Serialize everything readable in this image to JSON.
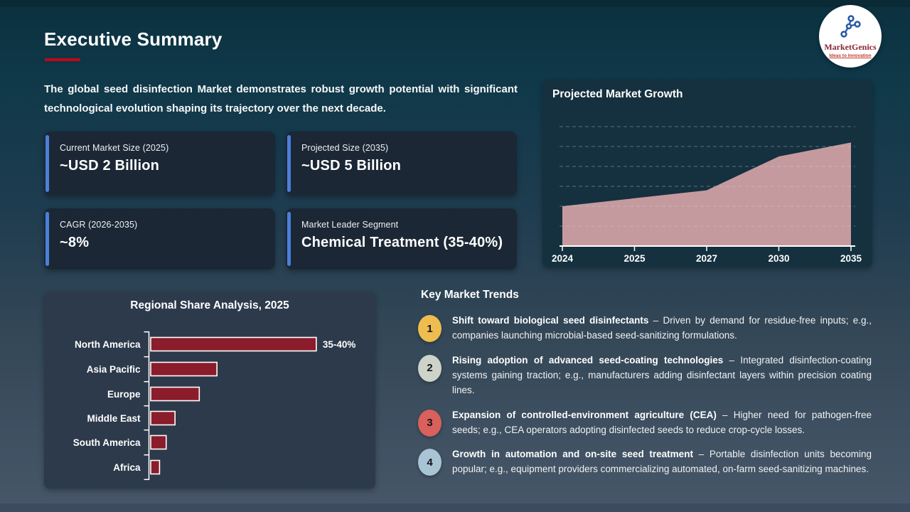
{
  "slide": {
    "title": "Executive Summary",
    "intro": "The global seed disinfection  Market demonstrates robust growth potential with significant technological evolution shaping its trajectory over the next decade."
  },
  "logo": {
    "name": "MarketGenics",
    "tagline": "Ideas to Innovation"
  },
  "stat_cards": [
    {
      "label": "Current Market Size (2025)",
      "value": "~USD 2 Billion"
    },
    {
      "label": "Projected Size (2035)",
      "value": "~USD 5 Billion"
    },
    {
      "label": "CAGR (2026-2035)",
      "value": "~8%"
    },
    {
      "label": "Market Leader Segment",
      "value": "Chemical Treatment (35-40%)"
    }
  ],
  "growth_panel": {
    "title": "Projected Market Growth"
  },
  "regional_panel": {
    "title": "Regional Share Analysis, 2025"
  },
  "trends": {
    "title": "Key Market Trends",
    "items": [
      {
        "num": "1",
        "badge_color": "#edbd4f",
        "bold": "Shift toward biological seed disinfectants",
        "rest": " – Driven by demand for residue-free inputs; e.g., companies launching microbial-based seed-sanitizing formulations."
      },
      {
        "num": "2",
        "badge_color": "#cdd3c8",
        "bold": "Rising adoption of advanced seed-coating technologies",
        "rest": " – Integrated disinfection-coating systems gaining traction; e.g., manufacturers adding disinfectant layers within precision coating lines."
      },
      {
        "num": "3",
        "badge_color": "#d9605c",
        "bold": "Expansion of controlled-environment agriculture (CEA)",
        "rest": " – Higher need for pathogen-free seeds; e.g., CEA operators adopting disinfected seeds to reduce crop-cycle losses."
      },
      {
        "num": "4",
        "badge_color": "#a9c4d5",
        "bold": "Growth in automation and on-site seed treatment",
        "rest": " – Portable disinfection units becoming popular; e.g., equipment providers commercializing automated, on-farm seed-sanitizing machines."
      }
    ]
  },
  "chart_data": [
    {
      "type": "area",
      "title": "Projected Market Growth",
      "x": [
        "2024",
        "2025",
        "2027",
        "2030",
        "2035"
      ],
      "values": [
        2,
        2.4,
        2.8,
        4.5,
        5.2
      ],
      "ylim": [
        0,
        6
      ],
      "grid": "dashed horizontal gridlines, no y tick labels",
      "legend": "none",
      "fill_color": "#c49a9e",
      "axis_color": "#ffffff"
    },
    {
      "type": "bar",
      "orientation": "horizontal",
      "title": "Regional Share Analysis, 2025",
      "categories": [
        "North America",
        "Asia Pacific",
        "Europe",
        "Middle East",
        "South America",
        "Africa"
      ],
      "values": [
        37.5,
        15,
        11,
        5.5,
        3.5,
        2
      ],
      "data_labels": [
        "35-40%",
        "",
        "",
        "",
        "",
        ""
      ],
      "xlim": [
        0,
        45
      ],
      "grid": "off",
      "legend": "none",
      "bar_color": "#8b1c2b",
      "bar_border_color": "#ffffff"
    }
  ]
}
